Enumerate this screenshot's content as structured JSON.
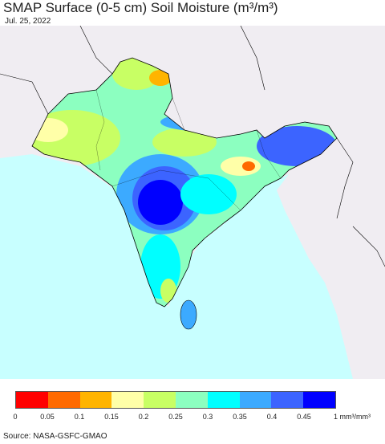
{
  "title": "SMAP Surface (0-5 cm) Soil Moisture (m³/m³)",
  "date": "Jul. 25, 2022",
  "source": "Source: NASA-GSFC-GMAO",
  "legend": {
    "colors": [
      "#ff0000",
      "#ff6a00",
      "#ffb400",
      "#ffffa8",
      "#c8ff64",
      "#8cffc0",
      "#00ffff",
      "#3caaff",
      "#3c64ff",
      "#0000ff"
    ],
    "ticks": [
      "0",
      "0.05",
      "0.1",
      "0.15",
      "0.2",
      "0.25",
      "0.3",
      "0.35",
      "0.4",
      "0.45",
      "1"
    ],
    "unit": "mm³/mm³"
  },
  "colors": {
    "ocean": "#c8ffff",
    "nodata_land": "#f0edf2",
    "border": "#000000"
  }
}
